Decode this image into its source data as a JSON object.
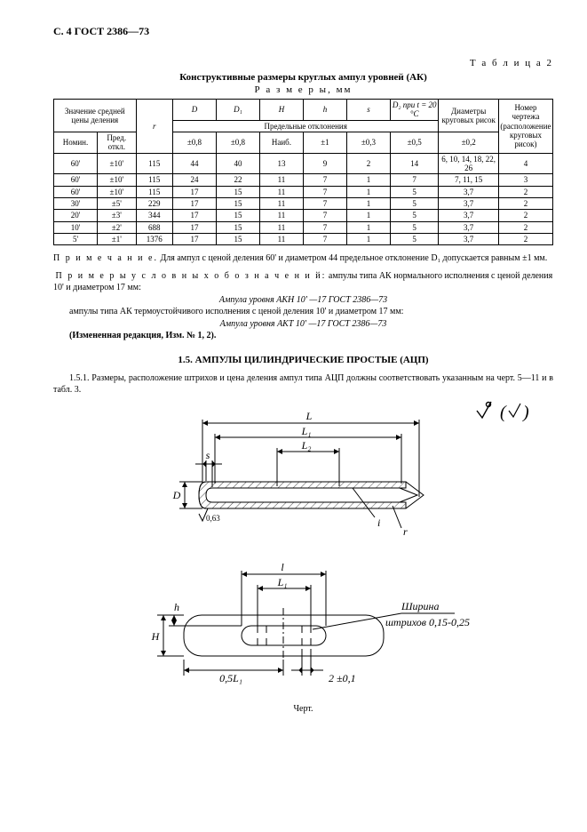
{
  "header": "С. 4  ГОСТ 2386—73",
  "table_label": "Т а б л и ц а  2",
  "table_caption": "Конструктивные размеры круглых ампул уровней (АК)",
  "table_subcaption": "Р а з м е р ы, мм",
  "table": {
    "head": {
      "col_mean": "Значение средней цены деления",
      "col_r": "r",
      "col_D": "D",
      "col_D1": "D₁",
      "col_H": "H",
      "col_h": "h",
      "col_s": "s",
      "col_D2": "D₂ при t = 20 °C",
      "col_diam_risk": "Диаметры круговых рисок",
      "col_num": "Номер чертежа (располо­жение круговых рисок)",
      "nom": "Номин.",
      "pred": "Пред. откл.",
      "dev_band": "Предельные отклонения",
      "d08a": "±0,8",
      "d08b": "±0,8",
      "d_naib": "Наиб.",
      "d1": "±1",
      "d03": "±0,3",
      "d05": "±0,5",
      "d02": "±0,2"
    },
    "rows": [
      {
        "nom": "60'",
        "pred": "±10'",
        "r": "115",
        "D": "44",
        "D1": "40",
        "H": "13",
        "h": "9",
        "s": "2",
        "D2": "14",
        "diam": "6, 10, 14, 18, 22, 26",
        "num": "4"
      },
      {
        "nom": "60'",
        "pred": "±10'",
        "r": "115",
        "D": "24",
        "D1": "22",
        "H": "11",
        "h": "7",
        "s": "1",
        "D2": "7",
        "diam": "7, 11, 15",
        "num": "3"
      },
      {
        "nom": "60'",
        "pred": "±10'",
        "r": "115",
        "D": "17",
        "D1": "15",
        "H": "11",
        "h": "7",
        "s": "1",
        "D2": "5",
        "diam": "3,7",
        "num": "2"
      },
      {
        "nom": "30'",
        "pred": "±5'",
        "r": "229",
        "D": "17",
        "D1": "15",
        "H": "11",
        "h": "7",
        "s": "1",
        "D2": "5",
        "diam": "3,7",
        "num": "2"
      },
      {
        "nom": "20'",
        "pred": "±3'",
        "r": "344",
        "D": "17",
        "D1": "15",
        "H": "11",
        "h": "7",
        "s": "1",
        "D2": "5",
        "diam": "3,7",
        "num": "2"
      },
      {
        "nom": "10'",
        "pred": "±2'",
        "r": "688",
        "D": "17",
        "D1": "15",
        "H": "11",
        "h": "7",
        "s": "1",
        "D2": "5",
        "diam": "3,7",
        "num": "2"
      },
      {
        "nom": "5'",
        "pred": "±1'",
        "r": "1376",
        "D": "17",
        "D1": "15",
        "H": "11",
        "h": "7",
        "s": "1",
        "D2": "5",
        "diam": "3,7",
        "num": "2"
      }
    ]
  },
  "note_label": "П р и м е ч а н и е.",
  "note_text": " Для ампул с ценой деления 60' и диаметром 44   предельное отклонение D₁ допускается равным ±1 мм.",
  "examples_label": "П р и м е р ы   у с л о в н ы х   о б о з н а ч е н и й:",
  "examples_l1": "  ампулы типа АК нормального исполне­ния с ценой деления 10' и диаметром 17 мм:",
  "examples_it1": "Ампула уровня АКН 10' —17 ГОСТ 2386—73",
  "examples_l2": "ампулы типа АК термоустойчивого исполнения с ценой деления 10' и диаметром 17 мм:",
  "examples_it2": "Ампула уровня АКТ 10' —17 ГОСТ 2386—73",
  "changed": "(Измененная редакция, Изм. № 1, 2).",
  "sec_title": "1.5. АМПУЛЫ ЦИЛИНДРИЧЕСКИЕ ПРОСТЫЕ (АЦП)",
  "para151": "1.5.1. Размеры, расположение штрихов и цена деления ампул типа АЦП должны соответство­вать указанным на черт. 5—11 и в табл. 3.",
  "surf_symbol": "√ (√)",
  "fig1": {
    "L": "L",
    "L1": "L₁",
    "L2": "L₂",
    "D": "D",
    "s": "s",
    "i": "i",
    "r": "r",
    "rough": "0,63"
  },
  "fig2": {
    "l": "l",
    "L1": "L₁",
    "h": "h",
    "H": "H",
    "halfL1": "0,5L₁",
    "tol2": "2 ±0,1",
    "note_line1": "Ширина",
    "note_line2": "штрихов 0,15-0,25"
  },
  "fig_caption": "Черт.",
  "draw": {
    "stroke": "#000000",
    "fill": "#ffffff",
    "hatch_spacing": 6
  }
}
